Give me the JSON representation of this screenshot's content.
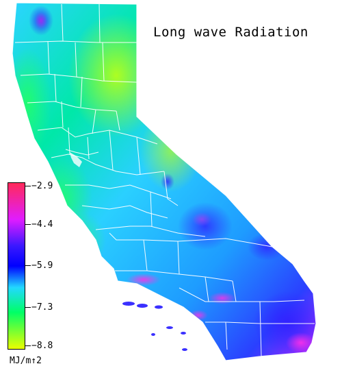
{
  "title": "Long wave Radiation",
  "legend": {
    "unit": "MJ/m↑2",
    "ticks": [
      "−2.9",
      "−4.4",
      "−5.9",
      "−7.3",
      "−8.8"
    ],
    "range": [
      -8.8,
      -2.9
    ],
    "colors": {
      "max": "#ff2a5a",
      "upper": "#e01cff",
      "mid_upper": "#3a18ff",
      "mid": "#0000ff",
      "mid_lower": "#22d8ff",
      "lower": "#00ff66",
      "min": "#eaff00"
    }
  },
  "map": {
    "boundary_color": "#ffffff",
    "coast_fill": "#2fd9ff"
  }
}
